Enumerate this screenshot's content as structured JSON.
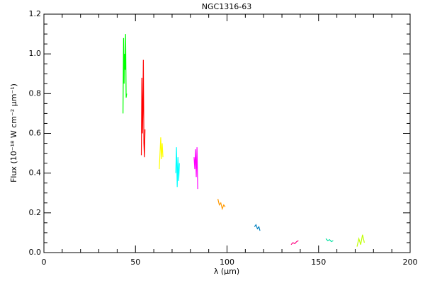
{
  "chart_data": {
    "type": "line",
    "title": "NGC1316-63",
    "xlabel": "λ (μm)",
    "ylabel": "Flux (10⁻¹⁸ W cm⁻² μm⁻¹)",
    "xlim": [
      0,
      200
    ],
    "ylim": [
      0,
      1.2
    ],
    "xticks": [
      0,
      50,
      100,
      150,
      200
    ],
    "yticks": [
      {
        "value": 0,
        "label": "0.0"
      },
      {
        "value": 0.2,
        "label": "0.2"
      },
      {
        "value": 0.4,
        "label": "0.4"
      },
      {
        "value": 0.6,
        "label": "0.6"
      },
      {
        "value": 0.8,
        "label": "0.8"
      },
      {
        "value": 1.0,
        "label": "1.0"
      },
      {
        "value": 1.2,
        "label": "1.2"
      }
    ],
    "xminorticks": [
      10,
      20,
      30,
      40,
      60,
      70,
      80,
      90,
      110,
      120,
      130,
      140,
      160,
      170,
      180,
      190
    ],
    "yminorticks": [
      0.05,
      0.1,
      0.15,
      0.25,
      0.3,
      0.35,
      0.45,
      0.5,
      0.55,
      0.65,
      0.7,
      0.75,
      0.85,
      0.9,
      0.95,
      1.05,
      1.1,
      1.15
    ],
    "series": [
      {
        "color": "#00ff00",
        "x": [
          43.2,
          43.5,
          43.8,
          44.0,
          44.3,
          44.6,
          44.9,
          45.2
        ],
        "values": [
          0.7,
          1.08,
          0.85,
          1.0,
          0.92,
          1.1,
          0.78,
          0.8
        ]
      },
      {
        "color": "#ff0000",
        "x": [
          53.2,
          53.5,
          53.8,
          54.0,
          54.3,
          54.6,
          54.9,
          55.2
        ],
        "values": [
          0.49,
          0.88,
          0.6,
          0.7,
          0.97,
          0.55,
          0.48,
          0.62
        ]
      },
      {
        "color": "#ffff00",
        "x": [
          63.0,
          63.4,
          63.8,
          64.2,
          64.6,
          65.0
        ],
        "values": [
          0.42,
          0.5,
          0.58,
          0.47,
          0.55,
          0.48
        ]
      },
      {
        "color": "#00ffff",
        "x": [
          72.0,
          72.4,
          72.8,
          73.2,
          73.6,
          74.0
        ],
        "values": [
          0.4,
          0.53,
          0.33,
          0.48,
          0.36,
          0.45
        ]
      },
      {
        "color": "#ff00ff",
        "x": [
          82.0,
          82.4,
          82.8,
          83.2,
          83.6,
          84.0
        ],
        "values": [
          0.48,
          0.42,
          0.52,
          0.38,
          0.53,
          0.32
        ]
      },
      {
        "color": "#ff9900",
        "x": [
          95.0,
          95.8,
          96.6,
          97.4,
          98.2,
          99.0
        ],
        "values": [
          0.27,
          0.24,
          0.25,
          0.22,
          0.24,
          0.23
        ]
      },
      {
        "color": "#0080c0",
        "x": [
          115.0,
          115.8,
          116.6,
          117.4,
          118.0
        ],
        "values": [
          0.13,
          0.14,
          0.12,
          0.13,
          0.11
        ]
      },
      {
        "color": "#ff0080",
        "x": [
          135.0,
          136.0,
          137.0,
          138.0,
          139.0
        ],
        "values": [
          0.04,
          0.05,
          0.045,
          0.055,
          0.06
        ]
      },
      {
        "color": "#00e0a0",
        "x": [
          154.0,
          155.0,
          156.0,
          157.0,
          158.0
        ],
        "values": [
          0.07,
          0.06,
          0.065,
          0.055,
          0.06
        ]
      },
      {
        "color": "#c0ff00",
        "x": [
          171.0,
          172.0,
          173.0,
          174.0,
          175.0
        ],
        "values": [
          0.03,
          0.07,
          0.04,
          0.09,
          0.05
        ]
      }
    ]
  }
}
